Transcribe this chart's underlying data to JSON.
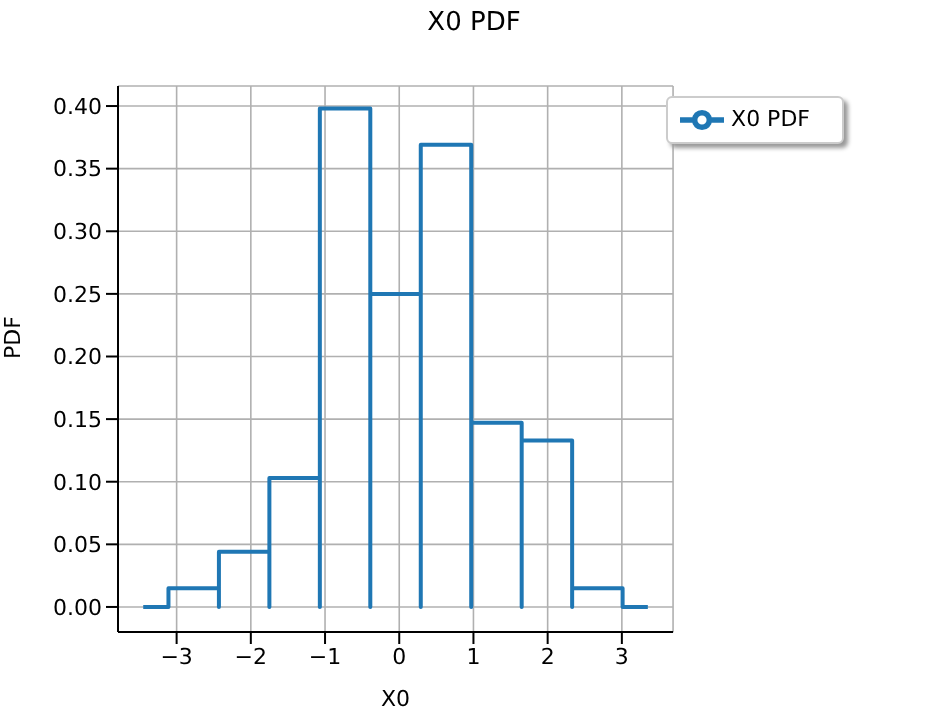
{
  "chart_data": {
    "type": "histogram",
    "title": "X0 PDF",
    "xlabel": "X0",
    "ylabel": "PDF",
    "bins": [
      -3.45,
      -3.11,
      -2.43,
      -1.75,
      -1.07,
      -0.39,
      0.29,
      0.97,
      1.65,
      2.33,
      3.01,
      3.35
    ],
    "series": [
      {
        "name": "X0 PDF",
        "color": "#1f77b4",
        "values": [
          0,
          0.015,
          0.044,
          0.103,
          0.398,
          0.25,
          0.369,
          0.147,
          0.133,
          0.015,
          0
        ]
      }
    ],
    "xlim": [
      -3.79,
      3.69
    ],
    "xticks": [
      {
        "value": -3,
        "label": "−3"
      },
      {
        "value": -2,
        "label": "−2"
      },
      {
        "value": -1,
        "label": "−1"
      },
      0,
      1,
      2,
      3
    ],
    "ylim": [
      -0.02,
      0.416
    ],
    "yticks": [
      {
        "value": 0,
        "label": "0.00"
      },
      {
        "value": 0.05,
        "label": "0.05"
      },
      {
        "value": 0.1,
        "label": "0.10"
      },
      {
        "value": 0.15,
        "label": "0.15"
      },
      {
        "value": 0.2,
        "label": "0.20"
      },
      {
        "value": 0.25,
        "label": "0.25"
      },
      {
        "value": 0.3,
        "label": "0.30"
      },
      {
        "value": 0.35,
        "label": "0.35"
      },
      {
        "value": 0.4,
        "label": "0.40"
      }
    ],
    "grid": true,
    "legend": "top right"
  }
}
